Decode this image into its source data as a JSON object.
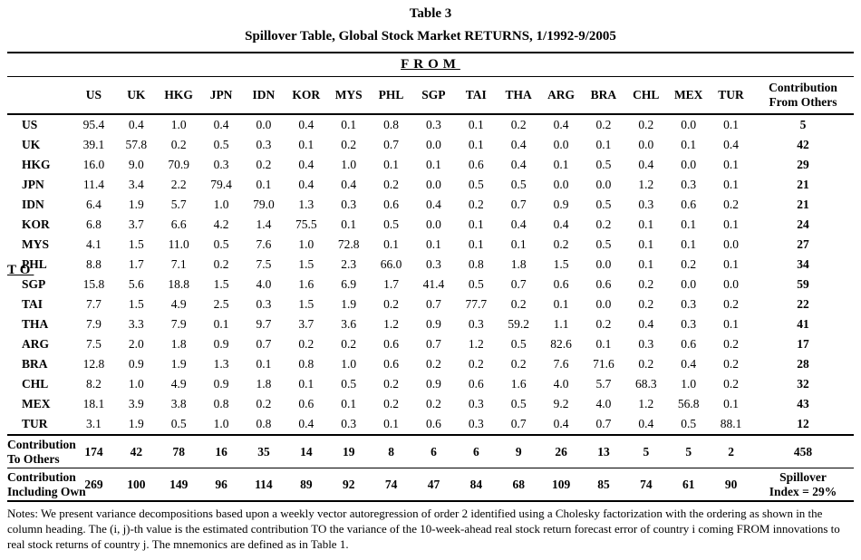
{
  "title": "Table 3",
  "subtitle": "Spillover Table, Global Stock Market RETURNS, 1/1992-9/2005",
  "from_label": "FROM",
  "to_label": "TO",
  "columns": [
    "US",
    "UK",
    "HKG",
    "JPN",
    "IDN",
    "KOR",
    "MYS",
    "PHL",
    "SGP",
    "TAI",
    "THA",
    "ARG",
    "BRA",
    "CHL",
    "MEX",
    "TUR"
  ],
  "contribution_header_lines": [
    "Contribution",
    "From Others"
  ],
  "rows": [
    {
      "label": "US",
      "values": [
        "95.4",
        "0.4",
        "1.0",
        "0.4",
        "0.0",
        "0.4",
        "0.1",
        "0.8",
        "0.3",
        "0.1",
        "0.2",
        "0.4",
        "0.2",
        "0.2",
        "0.0",
        "0.1"
      ],
      "contribution": "5"
    },
    {
      "label": "UK",
      "values": [
        "39.1",
        "57.8",
        "0.2",
        "0.5",
        "0.3",
        "0.1",
        "0.2",
        "0.7",
        "0.0",
        "0.1",
        "0.4",
        "0.0",
        "0.1",
        "0.0",
        "0.1",
        "0.4"
      ],
      "contribution": "42"
    },
    {
      "label": "HKG",
      "values": [
        "16.0",
        "9.0",
        "70.9",
        "0.3",
        "0.2",
        "0.4",
        "1.0",
        "0.1",
        "0.1",
        "0.6",
        "0.4",
        "0.1",
        "0.5",
        "0.4",
        "0.0",
        "0.1"
      ],
      "contribution": "29"
    },
    {
      "label": "JPN",
      "values": [
        "11.4",
        "3.4",
        "2.2",
        "79.4",
        "0.1",
        "0.4",
        "0.4",
        "0.2",
        "0.0",
        "0.5",
        "0.5",
        "0.0",
        "0.0",
        "1.2",
        "0.3",
        "0.1"
      ],
      "contribution": "21"
    },
    {
      "label": "IDN",
      "values": [
        "6.4",
        "1.9",
        "5.7",
        "1.0",
        "79.0",
        "1.3",
        "0.3",
        "0.6",
        "0.4",
        "0.2",
        "0.7",
        "0.9",
        "0.5",
        "0.3",
        "0.6",
        "0.2"
      ],
      "contribution": "21"
    },
    {
      "label": "KOR",
      "values": [
        "6.8",
        "3.7",
        "6.6",
        "4.2",
        "1.4",
        "75.5",
        "0.1",
        "0.5",
        "0.0",
        "0.1",
        "0.4",
        "0.4",
        "0.2",
        "0.1",
        "0.1",
        "0.1"
      ],
      "contribution": "24"
    },
    {
      "label": "MYS",
      "values": [
        "4.1",
        "1.5",
        "11.0",
        "0.5",
        "7.6",
        "1.0",
        "72.8",
        "0.1",
        "0.1",
        "0.1",
        "0.1",
        "0.2",
        "0.5",
        "0.1",
        "0.1",
        "0.0"
      ],
      "contribution": "27"
    },
    {
      "label": "PHL",
      "values": [
        "8.8",
        "1.7",
        "7.1",
        "0.2",
        "7.5",
        "1.5",
        "2.3",
        "66.0",
        "0.3",
        "0.8",
        "1.8",
        "1.5",
        "0.0",
        "0.1",
        "0.2",
        "0.1"
      ],
      "contribution": "34"
    },
    {
      "label": "SGP",
      "values": [
        "15.8",
        "5.6",
        "18.8",
        "1.5",
        "4.0",
        "1.6",
        "6.9",
        "1.7",
        "41.4",
        "0.5",
        "0.7",
        "0.6",
        "0.6",
        "0.2",
        "0.0",
        "0.0"
      ],
      "contribution": "59"
    },
    {
      "label": "TAI",
      "values": [
        "7.7",
        "1.5",
        "4.9",
        "2.5",
        "0.3",
        "1.5",
        "1.9",
        "0.2",
        "0.7",
        "77.7",
        "0.2",
        "0.1",
        "0.0",
        "0.2",
        "0.3",
        "0.2"
      ],
      "contribution": "22"
    },
    {
      "label": "THA",
      "values": [
        "7.9",
        "3.3",
        "7.9",
        "0.1",
        "9.7",
        "3.7",
        "3.6",
        "1.2",
        "0.9",
        "0.3",
        "59.2",
        "1.1",
        "0.2",
        "0.4",
        "0.3",
        "0.1"
      ],
      "contribution": "41"
    },
    {
      "label": "ARG",
      "values": [
        "7.5",
        "2.0",
        "1.8",
        "0.9",
        "0.7",
        "0.2",
        "0.2",
        "0.6",
        "0.7",
        "1.2",
        "0.5",
        "82.6",
        "0.1",
        "0.3",
        "0.6",
        "0.2"
      ],
      "contribution": "17"
    },
    {
      "label": "BRA",
      "values": [
        "12.8",
        "0.9",
        "1.9",
        "1.3",
        "0.1",
        "0.8",
        "1.0",
        "0.6",
        "0.2",
        "0.2",
        "0.2",
        "7.6",
        "71.6",
        "0.2",
        "0.4",
        "0.2"
      ],
      "contribution": "28"
    },
    {
      "label": "CHL",
      "values": [
        "8.2",
        "1.0",
        "4.9",
        "0.9",
        "1.8",
        "0.1",
        "0.5",
        "0.2",
        "0.9",
        "0.6",
        "1.6",
        "4.0",
        "5.7",
        "68.3",
        "1.0",
        "0.2"
      ],
      "contribution": "32"
    },
    {
      "label": "MEX",
      "values": [
        "18.1",
        "3.9",
        "3.8",
        "0.8",
        "0.2",
        "0.6",
        "0.1",
        "0.2",
        "0.2",
        "0.3",
        "0.5",
        "9.2",
        "4.0",
        "1.2",
        "56.8",
        "0.1"
      ],
      "contribution": "43"
    },
    {
      "label": "TUR",
      "values": [
        "3.1",
        "1.9",
        "0.5",
        "1.0",
        "0.8",
        "0.4",
        "0.3",
        "0.1",
        "0.6",
        "0.3",
        "0.7",
        "0.4",
        "0.7",
        "0.4",
        "0.5",
        "88.1"
      ],
      "contribution": "12"
    }
  ],
  "summary_rows": [
    {
      "label_lines": [
        "Contribution",
        "To Others"
      ],
      "values": [
        "174",
        "42",
        "78",
        "16",
        "35",
        "14",
        "19",
        "8",
        "6",
        "6",
        "9",
        "26",
        "13",
        "5",
        "5",
        "2"
      ],
      "last_lines": [
        "458"
      ]
    },
    {
      "label_lines": [
        "Contribution",
        "Including Own"
      ],
      "values": [
        "269",
        "100",
        "149",
        "96",
        "114",
        "89",
        "92",
        "74",
        "47",
        "84",
        "68",
        "109",
        "85",
        "74",
        "61",
        "90"
      ],
      "last_lines": [
        "Spillover",
        "Index = 29%"
      ]
    }
  ],
  "notes": "Notes:  We present variance decompositions based upon a weekly vector autoregression of order 2 identified using a Cholesky factorization with the ordering as shown in the column heading.  The (i, j)-th value is the estimated contribution TO the variance of the 10-week-ahead real stock return forecast error of country i coming FROM innovations to real stock returns of country j.  The mnemonics are defined as in Table 1."
}
